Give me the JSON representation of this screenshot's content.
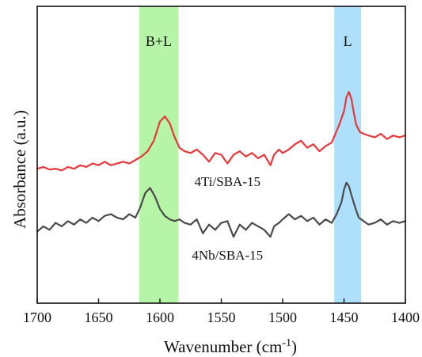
{
  "chart_data": {
    "type": "line",
    "title": "",
    "xlabel": "Wavenumber (cm",
    "xlabel_sup": "-1",
    "xlabel_close": ")",
    "ylabel": "Absorbance (a.u.)",
    "xlim": [
      1700,
      1400
    ],
    "x_reversed": true,
    "y_ticks_shown": false,
    "grid": false,
    "x_ticks": [
      "1700",
      "1650",
      "1600",
      "1550",
      "1500",
      "1450",
      "1400"
    ],
    "x_tick_values": [
      1700,
      1650,
      1600,
      1550,
      1500,
      1450,
      1400
    ],
    "bands": [
      {
        "label": "B+L",
        "from": 1617,
        "to": 1585,
        "color": "#b6f5a8"
      },
      {
        "label": "L",
        "from": 1458,
        "to": 1436,
        "color": "#aee0fb"
      }
    ],
    "series": [
      {
        "name": "4Ti/SBA-15",
        "color": "#e8373a",
        "x": [
          1700,
          1695,
          1690,
          1685,
          1680,
          1675,
          1670,
          1665,
          1660,
          1655,
          1650,
          1645,
          1640,
          1635,
          1630,
          1625,
          1620,
          1615,
          1610,
          1605,
          1600,
          1596,
          1592,
          1588,
          1584,
          1580,
          1575,
          1570,
          1565,
          1560,
          1555,
          1550,
          1545,
          1540,
          1535,
          1530,
          1525,
          1520,
          1515,
          1510,
          1507,
          1503,
          1500,
          1495,
          1490,
          1485,
          1480,
          1475,
          1470,
          1465,
          1460,
          1457,
          1454,
          1450,
          1448,
          1446,
          1444,
          1442,
          1440,
          1437,
          1434,
          1430,
          1425,
          1420,
          1415,
          1410,
          1405,
          1400
        ],
        "y": [
          0.02,
          0.03,
          0.015,
          0.02,
          0.01,
          0.03,
          0.02,
          0.04,
          0.03,
          0.05,
          0.04,
          0.06,
          0.04,
          0.05,
          0.06,
          0.05,
          0.07,
          0.09,
          0.12,
          0.18,
          0.29,
          0.32,
          0.28,
          0.2,
          0.14,
          0.12,
          0.11,
          0.13,
          0.1,
          0.06,
          0.11,
          0.1,
          0.05,
          0.1,
          0.12,
          0.09,
          0.11,
          0.08,
          0.1,
          0.04,
          0.1,
          0.13,
          0.11,
          0.13,
          0.16,
          0.18,
          0.14,
          0.16,
          0.12,
          0.15,
          0.17,
          0.22,
          0.27,
          0.35,
          0.43,
          0.46,
          0.42,
          0.34,
          0.27,
          0.23,
          0.22,
          0.21,
          0.2,
          0.22,
          0.19,
          0.21,
          0.2,
          0.21
        ]
      },
      {
        "name": "4Nb/SBA-15",
        "color": "#4a4a4a",
        "x": [
          1700,
          1695,
          1690,
          1685,
          1680,
          1675,
          1670,
          1665,
          1660,
          1655,
          1650,
          1645,
          1640,
          1635,
          1630,
          1625,
          1620,
          1616,
          1612,
          1608,
          1604,
          1600,
          1596,
          1592,
          1588,
          1584,
          1580,
          1575,
          1570,
          1565,
          1560,
          1555,
          1550,
          1545,
          1540,
          1535,
          1530,
          1525,
          1520,
          1515,
          1510,
          1507,
          1503,
          1500,
          1495,
          1490,
          1485,
          1480,
          1475,
          1470,
          1465,
          1460,
          1456,
          1452,
          1450,
          1448,
          1446,
          1444,
          1441,
          1438,
          1434,
          1430,
          1425,
          1420,
          1415,
          1410,
          1405,
          1400
        ],
        "y": [
          -0.34,
          -0.31,
          -0.33,
          -0.29,
          -0.31,
          -0.28,
          -0.3,
          -0.27,
          -0.29,
          -0.26,
          -0.28,
          -0.25,
          -0.24,
          -0.26,
          -0.27,
          -0.24,
          -0.26,
          -0.2,
          -0.12,
          -0.09,
          -0.14,
          -0.21,
          -0.25,
          -0.27,
          -0.28,
          -0.27,
          -0.29,
          -0.3,
          -0.27,
          -0.35,
          -0.3,
          -0.33,
          -0.29,
          -0.28,
          -0.37,
          -0.3,
          -0.33,
          -0.29,
          -0.31,
          -0.33,
          -0.37,
          -0.31,
          -0.29,
          -0.27,
          -0.24,
          -0.27,
          -0.25,
          -0.28,
          -0.26,
          -0.3,
          -0.27,
          -0.29,
          -0.24,
          -0.17,
          -0.1,
          -0.06,
          -0.08,
          -0.13,
          -0.2,
          -0.26,
          -0.28,
          -0.3,
          -0.29,
          -0.27,
          -0.3,
          -0.28,
          -0.29,
          -0.28
        ]
      }
    ],
    "series_labels": [
      {
        "text": "4Ti/SBA-15",
        "x": 1545,
        "y": -0.08
      },
      {
        "text": "4Nb/SBA-15",
        "x": 1545,
        "y": -0.5
      }
    ],
    "ylim": [
      -0.75,
      0.95
    ]
  }
}
